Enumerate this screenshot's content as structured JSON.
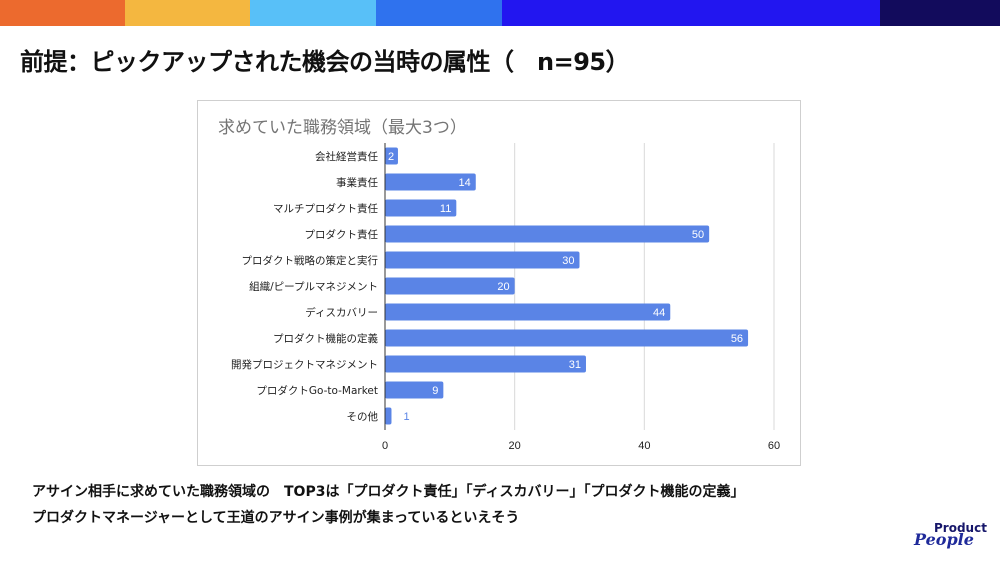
{
  "header": {
    "band_colors": [
      "#ec6a2e",
      "#f4b740",
      "#58c0f8",
      "#2f72ee",
      "#2216f0",
      "#120b5c"
    ],
    "title": "前提：ピックアップされた機会の当時の属性（　n=95）"
  },
  "chart_data": {
    "type": "bar",
    "orientation": "horizontal",
    "title": "求めていた職務領域（最大3つ）",
    "categories": [
      "会社経営責任",
      "事業責任",
      "マルチプロダクト責任",
      "プロダクト責任",
      "プロダクト戦略の策定と実行",
      "組織/ピープルマネジメント",
      "ディスカバリー",
      "プロダクト機能の定義",
      "開発プロジェクトマネジメント",
      "プロダクトGo-to-Market",
      "その他"
    ],
    "values": [
      2,
      14,
      11,
      50,
      30,
      20,
      44,
      56,
      31,
      9,
      1
    ],
    "labels": [
      "2",
      "14",
      "11",
      "50",
      "30",
      "20",
      "44",
      "56",
      "31",
      "9",
      "1"
    ],
    "xlim": [
      0,
      60
    ],
    "xticks": [
      "0",
      "20",
      "40",
      "60"
    ],
    "xtick_values": [
      0,
      20,
      40,
      60
    ],
    "grid": true,
    "bar_color": "#5a84e6",
    "xlabel": "",
    "ylabel": ""
  },
  "footer": {
    "line1": "アサイン相手に求めていた職務領域の　TOP3は「プロダクト責任」「ディスカバリー」「プロダクト機能の定義」",
    "line2": "プロダクトマネージャーとして王道のアサイン事例が集まっているといえそう"
  },
  "logo": {
    "line1": "Product",
    "line2": "People"
  }
}
